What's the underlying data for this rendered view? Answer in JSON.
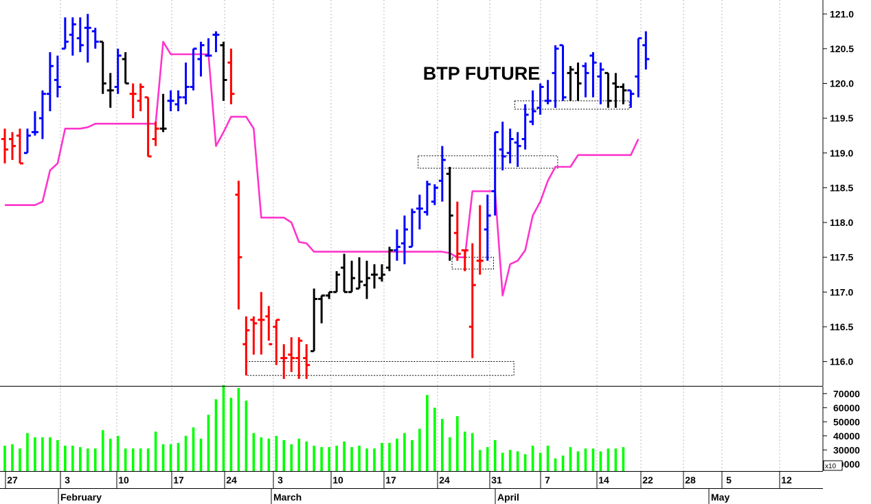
{
  "chart_data": [
    {
      "type": "ohlc",
      "title": "BTP FUTURE",
      "ylim": [
        115.65,
        121.2
      ],
      "yticks": [
        "116.0",
        "116.5",
        "117.0",
        "117.5",
        "118.0",
        "118.5",
        "119.0",
        "119.5",
        "120.0",
        "120.5",
        "121.0"
      ],
      "yticks_numeric": [
        116.0,
        116.5,
        117.0,
        117.5,
        118.0,
        118.5,
        119.0,
        119.5,
        120.0,
        120.5,
        121.0
      ],
      "x_day_labels": [
        "27",
        "3",
        "10",
        "17",
        "24",
        "3",
        "10",
        "17",
        "24",
        "31",
        "7",
        "14",
        "22",
        "28",
        "5",
        "12"
      ],
      "month_labels": [
        "February",
        "March",
        "April",
        "May"
      ],
      "grid": true,
      "colors": {
        "up": "#0000ff",
        "down": "#ff0000",
        "neutral": "#000000",
        "ichimoku": "#ff33cc"
      },
      "bars": [
        {
          "o": 119.2,
          "h": 119.35,
          "l": 118.85,
          "c": 119.05,
          "color": "red"
        },
        {
          "o": 119.2,
          "h": 119.3,
          "l": 118.9,
          "c": 119.1,
          "color": "red"
        },
        {
          "o": 119.25,
          "h": 119.35,
          "l": 118.85,
          "c": 118.85,
          "color": "red"
        },
        {
          "o": 119.0,
          "h": 119.35,
          "l": 119.0,
          "c": 119.25,
          "color": "blue"
        },
        {
          "o": 119.3,
          "h": 119.6,
          "l": 119.25,
          "c": 119.3,
          "color": "blue"
        },
        {
          "o": 119.5,
          "h": 119.9,
          "l": 119.2,
          "c": 119.85,
          "color": "blue"
        },
        {
          "o": 119.85,
          "h": 120.45,
          "l": 119.6,
          "c": 120.25,
          "color": "blue"
        },
        {
          "o": 120.05,
          "h": 120.4,
          "l": 119.8,
          "c": 119.95,
          "color": "blue"
        },
        {
          "o": 120.5,
          "h": 120.95,
          "l": 120.5,
          "c": 120.6,
          "color": "blue"
        },
        {
          "o": 120.7,
          "h": 120.95,
          "l": 120.4,
          "c": 120.85,
          "color": "blue"
        },
        {
          "o": 120.65,
          "h": 120.95,
          "l": 120.45,
          "c": 120.55,
          "color": "blue"
        },
        {
          "o": 120.8,
          "h": 121.0,
          "l": 120.3,
          "c": 120.8,
          "color": "blue"
        },
        {
          "o": 120.75,
          "h": 120.8,
          "l": 120.5,
          "c": 120.6,
          "color": "blue"
        },
        {
          "o": 120.6,
          "h": 120.6,
          "l": 119.85,
          "c": 120.0,
          "color": "black"
        },
        {
          "o": 119.9,
          "h": 120.15,
          "l": 119.65,
          "c": 119.9,
          "color": "black"
        },
        {
          "o": 119.95,
          "h": 120.5,
          "l": 119.85,
          "c": 120.4,
          "color": "blue"
        },
        {
          "o": 120.35,
          "h": 120.45,
          "l": 120.0,
          "c": 120.0,
          "color": "black"
        },
        {
          "o": 119.85,
          "h": 120.0,
          "l": 119.5,
          "c": 119.85,
          "color": "red"
        },
        {
          "o": 119.75,
          "h": 120.0,
          "l": 119.6,
          "c": 119.95,
          "color": "red"
        },
        {
          "o": 119.8,
          "h": 119.8,
          "l": 118.95,
          "c": 118.95,
          "color": "red"
        },
        {
          "o": 119.2,
          "h": 119.45,
          "l": 119.1,
          "c": 119.35,
          "color": "red"
        },
        {
          "o": 119.35,
          "h": 119.85,
          "l": 119.3,
          "c": 119.35,
          "color": "black"
        },
        {
          "o": 119.75,
          "h": 119.9,
          "l": 119.6,
          "c": 119.75,
          "color": "blue"
        },
        {
          "o": 119.7,
          "h": 119.9,
          "l": 119.6,
          "c": 119.8,
          "color": "blue"
        },
        {
          "o": 119.8,
          "h": 120.3,
          "l": 119.7,
          "c": 119.95,
          "color": "blue"
        },
        {
          "o": 119.95,
          "h": 120.5,
          "l": 119.9,
          "c": 120.5,
          "color": "blue"
        },
        {
          "o": 120.35,
          "h": 120.6,
          "l": 120.1,
          "c": 120.55,
          "color": "blue"
        },
        {
          "o": 120.4,
          "h": 120.65,
          "l": 120.4,
          "c": 120.4,
          "color": "blue"
        },
        {
          "o": 120.7,
          "h": 120.75,
          "l": 120.45,
          "c": 120.7,
          "color": "blue"
        },
        {
          "o": 120.55,
          "h": 120.6,
          "l": 119.75,
          "c": 120.05,
          "color": "black"
        },
        {
          "o": 120.3,
          "h": 120.5,
          "l": 119.7,
          "c": 119.85,
          "color": "red"
        },
        {
          "o": 118.4,
          "h": 118.6,
          "l": 116.75,
          "c": 117.5,
          "color": "red"
        },
        {
          "o": 116.25,
          "h": 116.65,
          "l": 115.8,
          "c": 116.45,
          "color": "red"
        },
        {
          "o": 116.6,
          "h": 116.65,
          "l": 116.1,
          "c": 116.55,
          "color": "red"
        },
        {
          "o": 116.6,
          "h": 117.0,
          "l": 116.1,
          "c": 116.6,
          "color": "red"
        },
        {
          "o": 116.65,
          "h": 116.8,
          "l": 116.3,
          "c": 116.25,
          "color": "red"
        },
        {
          "o": 116.5,
          "h": 116.6,
          "l": 115.95,
          "c": 116.6,
          "color": "red"
        },
        {
          "o": 116.05,
          "h": 116.25,
          "l": 115.75,
          "c": 116.05,
          "color": "red"
        },
        {
          "o": 116.1,
          "h": 116.35,
          "l": 115.85,
          "c": 116.05,
          "color": "red"
        },
        {
          "o": 116.05,
          "h": 116.35,
          "l": 115.75,
          "c": 116.3,
          "color": "red"
        },
        {
          "o": 116.05,
          "h": 116.25,
          "l": 115.75,
          "c": 115.95,
          "color": "red"
        },
        {
          "o": 116.15,
          "h": 117.05,
          "l": 116.15,
          "c": 116.9,
          "color": "black"
        },
        {
          "o": 116.9,
          "h": 116.95,
          "l": 116.55,
          "c": 116.95,
          "color": "black"
        },
        {
          "o": 116.95,
          "h": 117.0,
          "l": 116.9,
          "c": 117.0,
          "color": "black"
        },
        {
          "o": 117.0,
          "h": 117.3,
          "l": 117.0,
          "c": 117.25,
          "color": "black"
        },
        {
          "o": 117.35,
          "h": 117.55,
          "l": 117.0,
          "c": 117.0,
          "color": "black"
        },
        {
          "o": 117.0,
          "h": 117.45,
          "l": 117.0,
          "c": 117.2,
          "color": "black"
        },
        {
          "o": 117.05,
          "h": 117.5,
          "l": 117.05,
          "c": 117.15,
          "color": "black"
        },
        {
          "o": 117.1,
          "h": 117.45,
          "l": 116.9,
          "c": 117.2,
          "color": "black"
        },
        {
          "o": 117.25,
          "h": 117.4,
          "l": 117.05,
          "c": 117.25,
          "color": "black"
        },
        {
          "o": 117.2,
          "h": 117.4,
          "l": 117.15,
          "c": 117.25,
          "color": "black"
        },
        {
          "o": 117.35,
          "h": 117.65,
          "l": 117.3,
          "c": 117.6,
          "color": "black"
        },
        {
          "o": 117.6,
          "h": 117.9,
          "l": 117.45,
          "c": 117.65,
          "color": "blue"
        },
        {
          "o": 117.7,
          "h": 118.1,
          "l": 117.4,
          "c": 117.9,
          "color": "blue"
        },
        {
          "o": 117.65,
          "h": 118.2,
          "l": 117.65,
          "c": 118.15,
          "color": "blue"
        },
        {
          "o": 118.2,
          "h": 118.4,
          "l": 117.9,
          "c": 118.2,
          "color": "blue"
        },
        {
          "o": 118.15,
          "h": 118.6,
          "l": 118.1,
          "c": 118.55,
          "color": "blue"
        },
        {
          "o": 118.3,
          "h": 118.55,
          "l": 118.25,
          "c": 118.5,
          "color": "blue"
        },
        {
          "o": 118.6,
          "h": 119.1,
          "l": 118.3,
          "c": 118.9,
          "color": "blue"
        },
        {
          "o": 118.7,
          "h": 118.8,
          "l": 117.45,
          "c": 118.1,
          "color": "black"
        },
        {
          "o": 117.85,
          "h": 118.3,
          "l": 117.45,
          "c": 117.55,
          "color": "red"
        },
        {
          "o": 117.6,
          "h": 117.6,
          "l": 117.3,
          "c": 117.6,
          "color": "red"
        },
        {
          "o": 116.5,
          "h": 117.7,
          "l": 116.05,
          "c": 117.1,
          "color": "red"
        },
        {
          "o": 117.45,
          "h": 118.25,
          "l": 117.25,
          "c": 117.45,
          "color": "red"
        },
        {
          "o": 117.9,
          "h": 118.4,
          "l": 117.45,
          "c": 118.1,
          "color": "blue"
        },
        {
          "o": 118.45,
          "h": 119.3,
          "l": 118.1,
          "c": 119.3,
          "color": "blue"
        },
        {
          "o": 119.05,
          "h": 119.45,
          "l": 118.75,
          "c": 118.95,
          "color": "blue"
        },
        {
          "o": 119.0,
          "h": 119.35,
          "l": 118.85,
          "c": 119.2,
          "color": "blue"
        },
        {
          "o": 119.15,
          "h": 119.3,
          "l": 118.8,
          "c": 119.1,
          "color": "blue"
        },
        {
          "o": 119.2,
          "h": 119.7,
          "l": 119.05,
          "c": 119.55,
          "color": "blue"
        },
        {
          "o": 119.45,
          "h": 119.9,
          "l": 119.4,
          "c": 119.6,
          "color": "blue"
        },
        {
          "o": 119.65,
          "h": 120.0,
          "l": 119.55,
          "c": 119.95,
          "color": "blue"
        },
        {
          "o": 119.75,
          "h": 120.05,
          "l": 119.7,
          "c": 119.75,
          "color": "blue"
        },
        {
          "o": 120.15,
          "h": 120.55,
          "l": 119.65,
          "c": 120.5,
          "color": "blue"
        },
        {
          "o": 120.55,
          "h": 120.55,
          "l": 119.75,
          "c": 119.8,
          "color": "blue"
        },
        {
          "o": 120.15,
          "h": 120.25,
          "l": 119.75,
          "c": 120.2,
          "color": "black"
        },
        {
          "o": 120.15,
          "h": 120.3,
          "l": 119.75,
          "c": 120.0,
          "color": "black"
        },
        {
          "o": 120.25,
          "h": 120.3,
          "l": 119.8,
          "c": 120.15,
          "color": "blue"
        },
        {
          "o": 120.4,
          "h": 120.45,
          "l": 119.8,
          "c": 120.3,
          "color": "blue"
        },
        {
          "o": 120.1,
          "h": 120.3,
          "l": 119.7,
          "c": 120.2,
          "color": "blue"
        },
        {
          "o": 120.15,
          "h": 120.15,
          "l": 119.65,
          "c": 119.75,
          "color": "black"
        },
        {
          "o": 120.0,
          "h": 120.15,
          "l": 119.65,
          "c": 119.95,
          "color": "black"
        },
        {
          "o": 119.95,
          "h": 120.0,
          "l": 119.7,
          "c": 119.9,
          "color": "black"
        },
        {
          "o": 119.9,
          "h": 119.9,
          "l": 119.65,
          "c": 119.85,
          "color": "blue"
        },
        {
          "o": 120.1,
          "h": 120.65,
          "l": 119.8,
          "c": 120.65,
          "color": "blue"
        },
        {
          "o": 120.55,
          "h": 120.75,
          "l": 120.2,
          "c": 120.35,
          "color": "blue"
        }
      ],
      "ichimoku_line": [
        118.25,
        118.25,
        118.25,
        118.25,
        118.25,
        118.3,
        118.75,
        118.85,
        119.35,
        119.35,
        119.35,
        119.37,
        119.42,
        119.42,
        119.42,
        119.42,
        119.42,
        119.42,
        119.42,
        119.42,
        119.42,
        120.6,
        120.42,
        120.42,
        120.42,
        120.42,
        120.42,
        120.42,
        119.1,
        119.3,
        119.52,
        119.52,
        119.52,
        119.35,
        118.07,
        118.07,
        118.07,
        118.07,
        118.0,
        117.72,
        117.7,
        117.58,
        117.58,
        117.58,
        117.58,
        117.58,
        117.58,
        117.58,
        117.58,
        117.58,
        117.58,
        117.58,
        117.58,
        117.58,
        117.58,
        117.58,
        117.58,
        117.58,
        117.58,
        117.56,
        117.5,
        117.5,
        118.45,
        118.45,
        118.45,
        118.45,
        116.95,
        117.4,
        117.45,
        117.6,
        118.1,
        118.3,
        118.6,
        118.8,
        118.8,
        118.8,
        118.97,
        118.97,
        118.97,
        118.97,
        118.97,
        118.97,
        118.97,
        118.97,
        119.2
      ],
      "highlight_boxes": [
        {
          "x_from": 32.0,
          "x_to": 67.5,
          "y_low": 115.8,
          "y_high": 116.0
        },
        {
          "x_from": 54.8,
          "x_to": 73.3,
          "y_low": 118.78,
          "y_high": 118.96
        },
        {
          "x_from": 59.3,
          "x_to": 64.8,
          "y_low": 117.33,
          "y_high": 117.5
        },
        {
          "x_from": 67.6,
          "x_to": 82.8,
          "y_low": 119.63,
          "y_high": 119.75
        }
      ]
    },
    {
      "type": "bar",
      "title": "",
      "ylim": [
        15000,
        75000
      ],
      "yticks": [
        "20000",
        "30000",
        "40000",
        "50000",
        "60000",
        "70000"
      ],
      "yticks_numeric": [
        20000,
        30000,
        40000,
        50000,
        60000,
        70000
      ],
      "multiplier_label": "x10",
      "color": "#00ff00",
      "values": [
        33000,
        34000,
        31000,
        42000,
        39000,
        39000,
        39000,
        37000,
        33000,
        33000,
        32000,
        31000,
        31000,
        44000,
        38000,
        40000,
        31000,
        31000,
        31000,
        31000,
        43000,
        34000,
        34000,
        35000,
        40000,
        46000,
        38000,
        55000,
        66000,
        76000,
        67000,
        74000,
        65000,
        42000,
        39000,
        38000,
        40000,
        37000,
        34000,
        38000,
        36000,
        33000,
        32000,
        32000,
        33000,
        36000,
        32000,
        33000,
        31000,
        31000,
        35000,
        35000,
        38000,
        42000,
        37000,
        45000,
        69000,
        60000,
        52000,
        39000,
        54000,
        43000,
        42000,
        30000,
        32000,
        37000,
        28000,
        30000,
        29000,
        27000,
        33000,
        28000,
        33000,
        24000,
        26000,
        32000,
        29000,
        31000,
        31000,
        29000,
        31000,
        31000,
        32000
      ]
    }
  ]
}
